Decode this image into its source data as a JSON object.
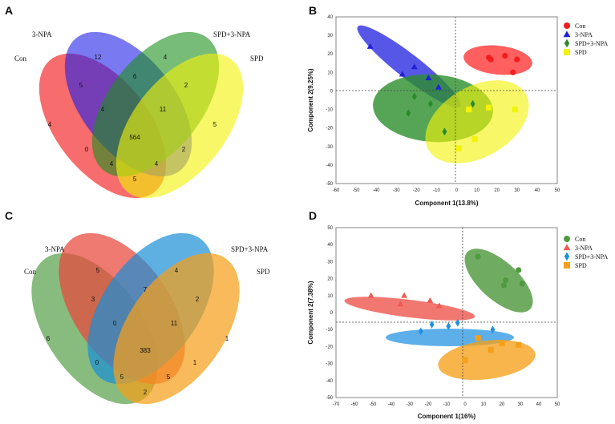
{
  "chart_data": [
    {
      "panel": "A",
      "type": "venn",
      "sets": [
        "Con",
        "3-NPA",
        "SPD+3-NPA",
        "SPD"
      ],
      "colors": [
        "#f21d1d",
        "#1f1fe8",
        "#1c8f1c",
        "#f2f20a"
      ],
      "regions": [
        "4",
        "12",
        "4",
        "5",
        "5",
        "6",
        "2",
        "4",
        "11",
        "564",
        "0",
        "2",
        "4",
        "4",
        "5"
      ]
    },
    {
      "panel": "B",
      "type": "scatter",
      "xlabel": "Component 1(13.8%)",
      "ylabel": "Component 2(9.25%)",
      "xlim": [
        -60,
        50
      ],
      "ylim": [
        -50,
        40
      ],
      "xticks": [
        -60,
        -50,
        -40,
        -30,
        -20,
        -10,
        0,
        10,
        20,
        30,
        40,
        50
      ],
      "yticks": [
        -50,
        -40,
        -30,
        -20,
        -10,
        0,
        10,
        20,
        30,
        40
      ],
      "series": [
        {
          "name": "Con",
          "color": "#f21d1d",
          "marker": "circle",
          "points": [
            [
              16,
              18
            ],
            [
              17,
              17
            ],
            [
              24,
              19
            ],
            [
              30,
              17
            ],
            [
              28,
              10
            ]
          ]
        },
        {
          "name": "3-NPA",
          "color": "#2020d8",
          "marker": "triangle",
          "points": [
            [
              -43,
              24
            ],
            [
              -21,
              13
            ],
            [
              -27,
              9
            ],
            [
              -14,
              7
            ],
            [
              -9,
              2
            ]
          ]
        },
        {
          "name": "SPD+3-NPA",
          "color": "#2a8a2a",
          "marker": "diamond",
          "points": [
            [
              -21,
              -3
            ],
            [
              -13,
              -7
            ],
            [
              -24,
              -12
            ],
            [
              -6,
              -22
            ],
            [
              8,
              -7
            ]
          ]
        },
        {
          "name": "SPD",
          "color": "#f2f20a",
          "marker": "square",
          "points": [
            [
              6,
              -10
            ],
            [
              16,
              -9
            ],
            [
              29,
              -10
            ],
            [
              9,
              -26
            ],
            [
              1,
              -31
            ]
          ]
        }
      ]
    },
    {
      "panel": "C",
      "type": "venn",
      "sets": [
        "Con",
        "3-NPA",
        "SPD+3-NPA",
        "SPD"
      ],
      "colors": [
        "#6aab5e",
        "#e8463c",
        "#1a8ed6",
        "#f5a01a"
      ],
      "regions": [
        "6",
        "5",
        "4",
        "1",
        "3",
        "7",
        "2",
        "0",
        "11",
        "383",
        "0",
        "1",
        "5",
        "5",
        "2"
      ]
    },
    {
      "panel": "D",
      "type": "scatter",
      "xlabel": "Component 1(16%)",
      "ylabel": "Component 2(7.38%)",
      "xlim": [
        -70,
        50
      ],
      "ylim": [
        -50,
        50
      ],
      "xticks": [
        -70,
        -60,
        -50,
        -40,
        -30,
        -20,
        -10,
        0,
        10,
        20,
        30,
        40,
        50
      ],
      "yticks": [
        -50,
        -40,
        -30,
        -20,
        -10,
        0,
        10,
        20,
        30,
        40,
        50
      ],
      "series": [
        {
          "name": "Con",
          "color": "#4f9a3f",
          "marker": "circle",
          "points": [
            [
              7,
              33
            ],
            [
              29,
              25
            ],
            [
              22,
              19
            ],
            [
              31,
              17
            ],
            [
              21,
              16
            ]
          ]
        },
        {
          "name": "3-NPA",
          "color": "#ee5a52",
          "marker": "triangle",
          "points": [
            [
              -51,
              10
            ],
            [
              -33,
              10
            ],
            [
              -35,
              5
            ],
            [
              -19,
              7
            ],
            [
              -14,
              4
            ]
          ]
        },
        {
          "name": "SPD+3-NPA",
          "color": "#1f90e0",
          "marker": "diamond",
          "points": [
            [
              -4,
              -6
            ],
            [
              -18,
              -7
            ],
            [
              -9,
              -8
            ],
            [
              -24,
              -11
            ],
            [
              15,
              -10
            ]
          ]
        },
        {
          "name": "SPD",
          "color": "#f5a01a",
          "marker": "square",
          "points": [
            [
              7,
              -15
            ],
            [
              20,
              -18
            ],
            [
              29,
              -19
            ],
            [
              14,
              -22
            ],
            [
              0,
              -28
            ]
          ]
        }
      ]
    }
  ]
}
